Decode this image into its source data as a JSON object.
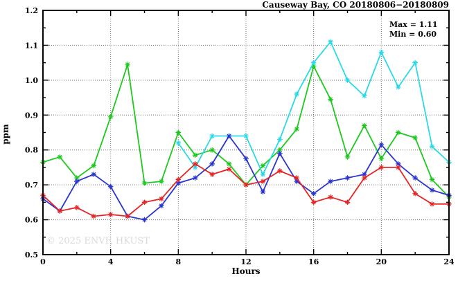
{
  "page": {
    "background": "#ffffff"
  },
  "watermark": "© 2025 ENVF, HKUST",
  "chart_data": {
    "type": "line",
    "title": "Causeway Bay, CO 20180806−20180809",
    "xlabel": "Hours",
    "ylabel": "ppm",
    "xlim": [
      0,
      24
    ],
    "ylim": [
      0.5,
      1.2
    ],
    "x_major_ticks": [
      0,
      4,
      8,
      12,
      16,
      20,
      24
    ],
    "x_minor_ticks": [
      2,
      6,
      10,
      14,
      18,
      22
    ],
    "y_major_ticks": [
      0.5,
      0.6,
      0.7,
      0.8,
      0.9,
      1.0,
      1.1,
      1.2
    ],
    "y_minor_ticks": [
      0.55,
      0.65,
      0.75,
      0.85,
      0.95,
      1.05,
      1.15
    ],
    "grid": {
      "style": "dotted",
      "x_at": [
        4,
        8,
        12,
        16,
        20
      ],
      "y_at": [
        0.6,
        0.7,
        0.8,
        0.9,
        1.0,
        1.1
      ]
    },
    "legend": "none",
    "marker": "asterisk",
    "annotations": {
      "max": "Max = 1.11",
      "min": "Min = 0.60"
    },
    "series": [
      {
        "name": "green",
        "color": "#1ec81e",
        "x": [
          0,
          1,
          2,
          3,
          4,
          5,
          6,
          7,
          8,
          9,
          10,
          11,
          12,
          13,
          14,
          15,
          16,
          17,
          18,
          19,
          20,
          21,
          22,
          23,
          24
        ],
        "values": [
          0.765,
          0.78,
          0.72,
          0.755,
          0.895,
          1.045,
          0.705,
          0.71,
          0.85,
          0.785,
          0.8,
          0.76,
          0.7,
          0.755,
          0.8,
          0.86,
          1.04,
          0.945,
          0.78,
          0.87,
          0.775,
          0.85,
          0.835,
          0.715,
          0.665
        ]
      },
      {
        "name": "cyan",
        "color": "#2bd9e6",
        "x": [
          8,
          9,
          10,
          11,
          12,
          13,
          14,
          15,
          16,
          17,
          18,
          19,
          20,
          21,
          22,
          23,
          24
        ],
        "values": [
          0.82,
          0.75,
          0.84,
          0.84,
          0.84,
          0.73,
          0.83,
          0.96,
          1.05,
          1.11,
          1.0,
          0.955,
          1.08,
          0.98,
          1.05,
          0.81,
          0.765
        ]
      },
      {
        "name": "blue",
        "color": "#2a35cf",
        "x": [
          0,
          1,
          2,
          3,
          4,
          5,
          6,
          7,
          8,
          9,
          10,
          11,
          12,
          13,
          14,
          15,
          16,
          17,
          18,
          19,
          20,
          21,
          22,
          23,
          24
        ],
        "values": [
          0.66,
          0.625,
          0.71,
          0.73,
          0.695,
          0.61,
          0.6,
          0.64,
          0.705,
          0.72,
          0.76,
          0.84,
          0.775,
          0.68,
          0.79,
          0.71,
          0.675,
          0.71,
          0.72,
          0.73,
          0.815,
          0.76,
          0.72,
          0.685,
          0.67
        ]
      },
      {
        "name": "red",
        "color": "#e42525",
        "x": [
          0,
          1,
          2,
          3,
          4,
          5,
          6,
          7,
          8,
          9,
          10,
          11,
          12,
          13,
          14,
          15,
          16,
          17,
          18,
          19,
          20,
          21,
          22,
          23,
          24
        ],
        "values": [
          0.67,
          0.625,
          0.635,
          0.61,
          0.615,
          0.61,
          0.65,
          0.66,
          0.715,
          0.76,
          0.73,
          0.745,
          0.7,
          0.71,
          0.74,
          0.72,
          0.65,
          0.665,
          0.65,
          0.72,
          0.75,
          0.75,
          0.675,
          0.645,
          0.645
        ]
      }
    ]
  }
}
